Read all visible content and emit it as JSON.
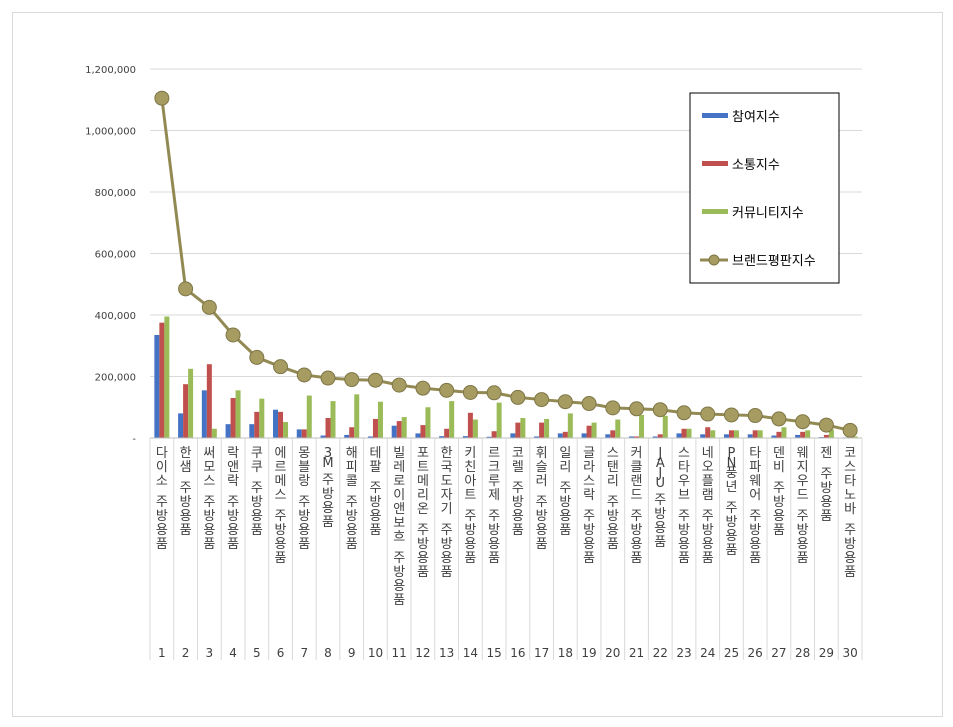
{
  "chart_data": {
    "type": "bar",
    "title": "",
    "xlabel": "",
    "ylabel": "",
    "ylim": [
      0,
      1200000
    ],
    "yticks": [
      0,
      200000,
      400000,
      600000,
      800000,
      1000000,
      1200000
    ],
    "ytick_labels": [
      "-",
      "200,000",
      "400,000",
      "600,000",
      "800,000",
      "1,000,000",
      "1,200,000"
    ],
    "grid": true,
    "legend_position": "right",
    "ranks": [
      "1",
      "2",
      "3",
      "4",
      "5",
      "6",
      "7",
      "8",
      "9",
      "10",
      "11",
      "12",
      "13",
      "14",
      "15",
      "16",
      "17",
      "18",
      "19",
      "20",
      "21",
      "22",
      "23",
      "24",
      "25",
      "26",
      "27",
      "28",
      "29",
      "30"
    ],
    "categories": [
      "다이소 주방용품",
      "한샘 주방용품",
      "써모스 주방용품",
      "락앤락 주방용품",
      "쿠쿠 주방용품",
      "에르메스 주방용품",
      "몽블랑 주방용품",
      "3M 주방용품",
      "해피콜 주방용품",
      "테팔 주방용품",
      "빌레로이앤보흐 주방용품",
      "포트메리온 주방용품",
      "한국도자기 주방용품",
      "키친아트 주방용품",
      "르크루제 주방용품",
      "코렐 주방용품",
      "휘슬러 주방용품",
      "일리 주방용품",
      "글라스락 주방용품",
      "스탠리 주방용품",
      "커클랜드 주방용품",
      "JAJU 주방용품",
      "스타우브 주방용품",
      "네오플램 주방용품",
      "PN풍년 주방용품",
      "타파웨어 주방용품",
      "덴비 주방용품",
      "웨지우드 주방용품",
      "젠 주방용품",
      "코스타노바 주방용품"
    ],
    "series": [
      {
        "name": "참여지수",
        "type": "bar",
        "color": "#4472c4",
        "values": [
          335000,
          80000,
          155000,
          45000,
          45000,
          92000,
          28000,
          8000,
          10000,
          5000,
          40000,
          15000,
          6000,
          6000,
          4000,
          15000,
          5000,
          15000,
          15000,
          12000,
          5000,
          5000,
          15000,
          12000,
          12000,
          12000,
          8000,
          10000,
          3000,
          2000
        ]
      },
      {
        "name": "소통지수",
        "type": "bar",
        "color": "#c0504d",
        "values": [
          375000,
          175000,
          240000,
          130000,
          85000,
          85000,
          28000,
          65000,
          35000,
          62000,
          55000,
          42000,
          30000,
          82000,
          22000,
          50000,
          50000,
          20000,
          40000,
          25000,
          5000,
          12000,
          30000,
          35000,
          25000,
          25000,
          20000,
          20000,
          10000,
          5000
        ]
      },
      {
        "name": "커뮤니티지수",
        "type": "bar",
        "color": "#9bbb59",
        "values": [
          395000,
          225000,
          30000,
          155000,
          128000,
          52000,
          138000,
          120000,
          142000,
          118000,
          68000,
          100000,
          120000,
          60000,
          115000,
          65000,
          62000,
          80000,
          50000,
          60000,
          75000,
          72000,
          30000,
          25000,
          25000,
          25000,
          35000,
          25000,
          28000,
          5000
        ]
      },
      {
        "name": "브랜드평판지수",
        "type": "line",
        "color": "#938953",
        "values": [
          1105000,
          485000,
          425000,
          335000,
          262000,
          232000,
          205000,
          195000,
          190000,
          188000,
          172000,
          162000,
          155000,
          148000,
          147000,
          132000,
          125000,
          118000,
          112000,
          98000,
          95000,
          92000,
          82000,
          78000,
          75000,
          73000,
          62000,
          53000,
          42000,
          25000
        ]
      }
    ]
  }
}
